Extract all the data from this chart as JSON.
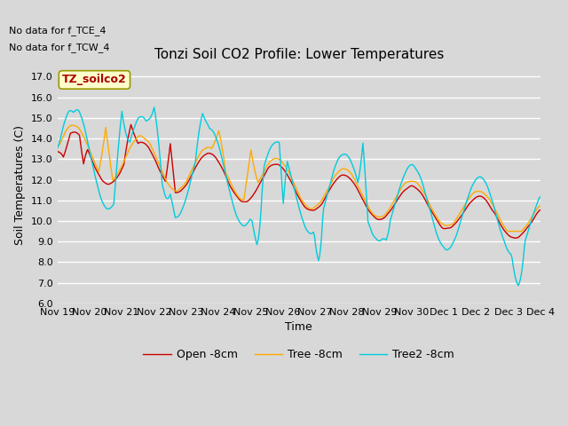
{
  "title": "Tonzi Soil CO2 Profile: Lower Temperatures",
  "xlabel": "Time",
  "ylabel": "Soil Temperatures (C)",
  "ylim": [
    6.0,
    17.5
  ],
  "annotation1": "No data for f_TCE_4",
  "annotation2": "No data for f_TCW_4",
  "box_label": "TZ_soilco2",
  "line_colors": [
    "#cc0000",
    "#ffaa00",
    "#00ccdd"
  ],
  "line_labels": [
    "Open -8cm",
    "Tree -8cm",
    "Tree2 -8cm"
  ],
  "background_color": "#d8d8d8",
  "plot_bg_color": "#d8d8d8",
  "grid_color": "#ffffff",
  "title_fontsize": 11,
  "axis_fontsize": 9,
  "tick_fontsize": 8,
  "x_tick_labels": [
    "Nov 19",
    "Nov 20",
    "Nov 21",
    "Nov 22",
    "Nov 23",
    "Nov 24",
    "Nov 25",
    "Nov 26",
    "Nov 27",
    "Nov 28",
    "Nov 29",
    "Nov 30",
    "Dec 1",
    "Dec 2",
    "Dec 3",
    "Dec 4"
  ]
}
